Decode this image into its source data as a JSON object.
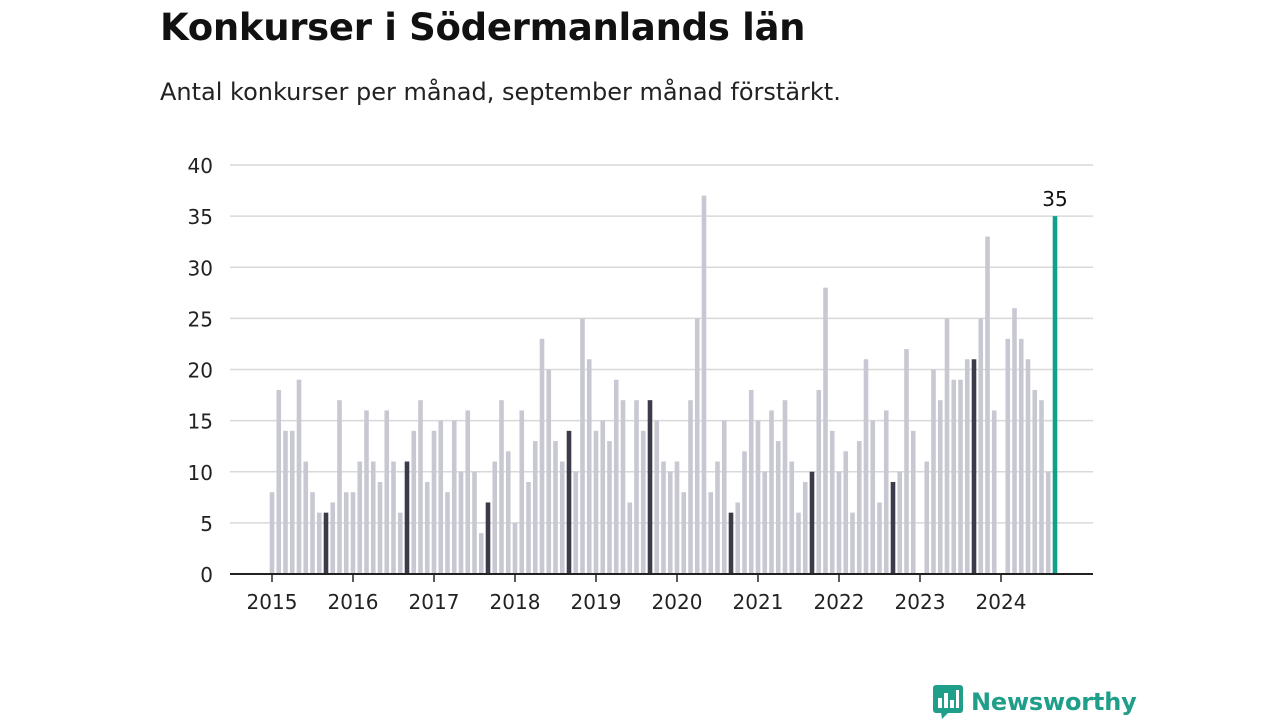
{
  "title": "Konkurser i Södermanlands län",
  "subtitle": "Antal konkurser per månad, september månad förstärkt.",
  "brand": {
    "name": "Newsworthy",
    "color": "#1f9e8a",
    "icon": "bar-chart-speech-bubble-icon"
  },
  "colors": {
    "regular_bar": "#c8c8d2",
    "september_bar": "#3b3b4a",
    "latest_bar": "#11a08a",
    "grid": "#d9d9d9",
    "axis": "#222222"
  },
  "chart_data": {
    "type": "bar",
    "title": "Konkurser i Södermanlands län",
    "subtitle": "Antal konkurser per månad, september månad förstärkt.",
    "xlabel": "",
    "ylabel": "",
    "ylim": [
      0,
      40
    ],
    "yticks": [
      0,
      5,
      10,
      15,
      20,
      25,
      30,
      35,
      40
    ],
    "grid": true,
    "start_year": 2015,
    "highlight": {
      "september": "dark bars",
      "latest": "teal bar with value label"
    },
    "latest_label": "35",
    "xtick_labels": [
      "2015",
      "2016",
      "2017",
      "2018",
      "2019",
      "2020",
      "2021",
      "2022",
      "2023",
      "2024"
    ],
    "series": [
      {
        "year": "2015",
        "values": [
          8,
          18,
          14,
          14,
          19,
          11,
          8,
          6,
          6,
          7,
          17,
          8
        ]
      },
      {
        "year": "2016",
        "values": [
          8,
          11,
          16,
          11,
          9,
          16,
          11,
          6,
          11,
          14,
          17,
          9
        ]
      },
      {
        "year": "2017",
        "values": [
          14,
          15,
          8,
          15,
          10,
          16,
          10,
          4,
          7,
          11,
          17,
          12
        ]
      },
      {
        "year": "2018",
        "values": [
          5,
          16,
          9,
          13,
          23,
          20,
          13,
          11,
          14,
          10,
          25,
          21
        ]
      },
      {
        "year": "2019",
        "values": [
          14,
          15,
          13,
          19,
          17,
          7,
          17,
          14,
          17,
          15,
          11,
          10
        ]
      },
      {
        "year": "2020",
        "values": [
          11,
          8,
          17,
          25,
          37,
          8,
          11,
          15,
          6,
          7,
          12,
          18
        ]
      },
      {
        "year": "2021",
        "values": [
          15,
          10,
          16,
          13,
          17,
          11,
          6,
          9,
          10,
          18,
          28,
          14
        ]
      },
      {
        "year": "2022",
        "values": [
          10,
          12,
          6,
          13,
          21,
          15,
          7,
          16,
          9,
          10,
          22,
          14
        ]
      },
      {
        "year": "2023",
        "values": [
          0,
          11,
          20,
          17,
          25,
          19,
          19,
          21,
          21,
          25,
          33,
          16
        ]
      },
      {
        "year": "2024",
        "values": [
          0,
          23,
          26,
          23,
          21,
          18,
          17,
          10,
          35
        ]
      }
    ]
  }
}
